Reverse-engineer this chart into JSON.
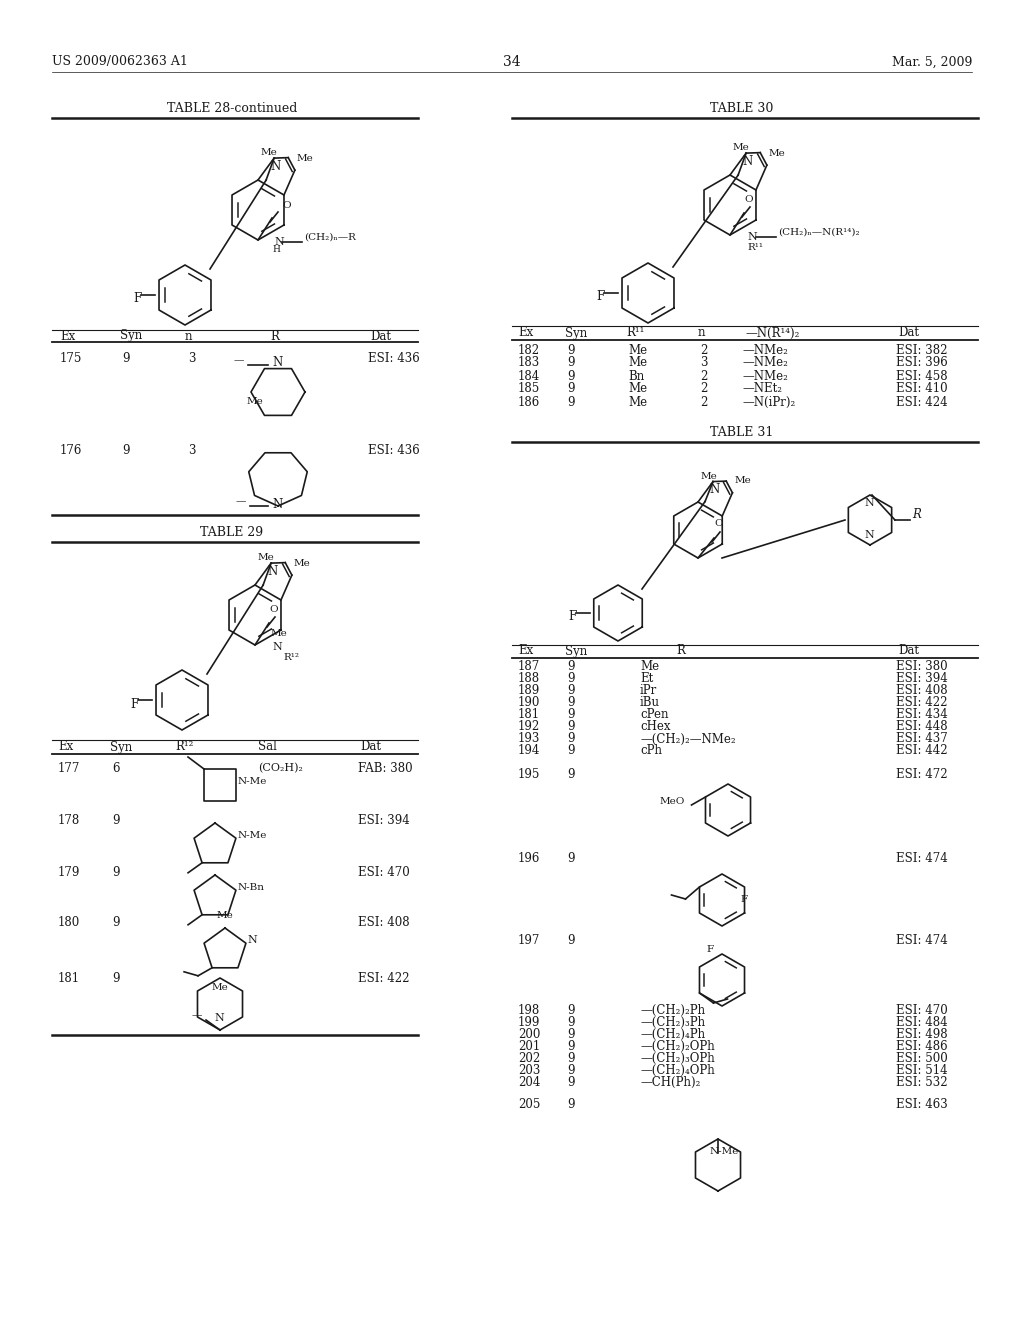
{
  "page_number": "34",
  "patent_left": "US 2009/0062363 A1",
  "patent_right": "Mar. 5, 2009",
  "lc": "#1a1a1a",
  "bg": "#ffffff",
  "fs_body": 8.5,
  "fs_small": 7.5,
  "fs_title": 9.0,
  "t28_title": "TABLE 28-continued",
  "t29_title": "TABLE 29",
  "t30_title": "TABLE 30",
  "t31_title": "TABLE 31",
  "t28_rows": [
    [
      "175",
      "9",
      "3",
      "ESI: 436"
    ],
    [
      "176",
      "9",
      "3",
      "ESI: 436"
    ]
  ],
  "t29_rows": [
    [
      "177",
      "6",
      "(CO₂H)₂",
      "FAB: 380"
    ],
    [
      "178",
      "9",
      "",
      "ESI: 394"
    ],
    [
      "179",
      "9",
      "",
      "ESI: 470"
    ],
    [
      "180",
      "9",
      "",
      "ESI: 408"
    ],
    [
      "181",
      "9",
      "",
      "ESI: 422"
    ]
  ],
  "t30_rows": [
    [
      "182",
      "9",
      "Me",
      "2",
      "—NMe₂",
      "ESI: 382"
    ],
    [
      "183",
      "9",
      "Me",
      "3",
      "—NMe₂",
      "ESI: 396"
    ],
    [
      "184",
      "9",
      "Bn",
      "2",
      "—NMe₂",
      "ESI: 458"
    ],
    [
      "185",
      "9",
      "Me",
      "2",
      "—NEt₂",
      "ESI: 410"
    ],
    [
      "186",
      "9",
      "Me",
      "2",
      "—N(iPr)₂",
      "ESI: 424"
    ]
  ],
  "t31_rows_simple": [
    [
      "187",
      "9",
      "Me",
      "ESI: 380"
    ],
    [
      "188",
      "9",
      "Et",
      "ESI: 394"
    ],
    [
      "189",
      "9",
      "iPr",
      "ESI: 408"
    ],
    [
      "190",
      "9",
      "iBu",
      "ESI: 422"
    ],
    [
      "181",
      "9",
      "cPen",
      "ESI: 434"
    ],
    [
      "192",
      "9",
      "cHex",
      "ESI: 448"
    ],
    [
      "193",
      "9",
      "—(CH₂)₂—NMe₂",
      "ESI: 437"
    ],
    [
      "194",
      "9",
      "cPh",
      "ESI: 442"
    ]
  ],
  "t31_rows_bottom": [
    [
      "198",
      "9",
      "—(CH₂)₂Ph",
      "ESI: 470"
    ],
    [
      "199",
      "9",
      "—(CH₂)₃Ph",
      "ESI: 484"
    ],
    [
      "200",
      "9",
      "—(CH₂)₄Ph",
      "ESI: 498"
    ],
    [
      "201",
      "9",
      "—(CH₂)₂OPh",
      "ESI: 486"
    ],
    [
      "202",
      "9",
      "—(CH₂)₃OPh",
      "ESI: 500"
    ],
    [
      "203",
      "9",
      "—(CH₂)₄OPh",
      "ESI: 514"
    ],
    [
      "204",
      "9",
      "—CH(Ph)₂",
      "ESI: 532"
    ]
  ]
}
